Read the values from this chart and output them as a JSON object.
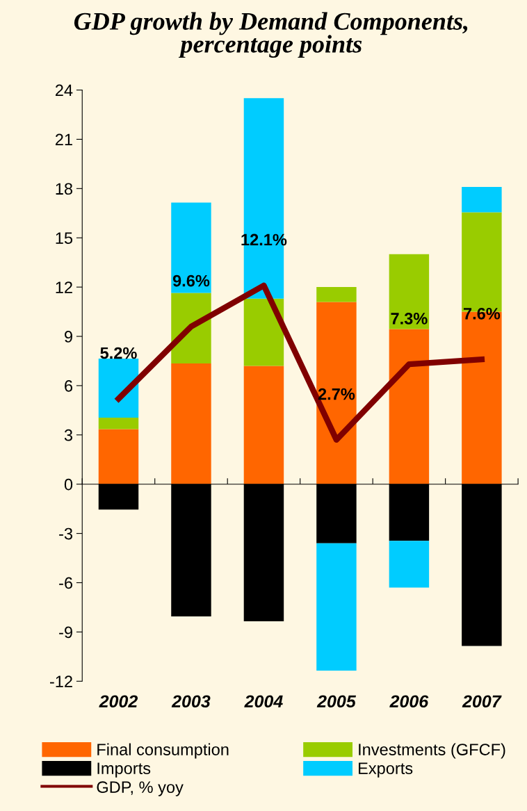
{
  "chart_data": {
    "type": "bar",
    "title": "GDP growth by Demand Components,\npercentage points",
    "categories": [
      "2002",
      "2003",
      "2004",
      "2005",
      "2006",
      "2007"
    ],
    "stacked": true,
    "ylim": [
      -12,
      24
    ],
    "yticks": [
      -12,
      -9,
      -6,
      -3,
      0,
      3,
      6,
      9,
      12,
      15,
      18,
      21,
      24
    ],
    "legend": "bottom",
    "series": [
      {
        "name": "Final consumption",
        "color": "#ff6600",
        "values": [
          3.35,
          7.35,
          7.2,
          11.1,
          9.45,
          10.5
        ]
      },
      {
        "name": "Investments (GFCF)",
        "color": "#99cc00",
        "values": [
          0.7,
          4.3,
          4.1,
          0.9,
          4.55,
          6.05
        ]
      },
      {
        "name": "Imports",
        "color": "#000000",
        "values": [
          -1.55,
          -8.05,
          -8.35,
          -3.6,
          -3.45,
          -9.85
        ]
      },
      {
        "name": "Exports",
        "color": "#00ccff",
        "values": [
          3.6,
          5.5,
          12.2,
          -7.75,
          -2.85,
          1.55
        ]
      },
      {
        "name": "GDP, % yoy",
        "type": "line",
        "color": "#800000",
        "values": [
          5.2,
          9.6,
          12.1,
          2.7,
          7.3,
          7.6
        ],
        "value_labels": [
          "5.2%",
          "9.6%",
          "12.1%",
          "2.7%",
          "7.3%",
          "7.6%"
        ]
      }
    ]
  }
}
